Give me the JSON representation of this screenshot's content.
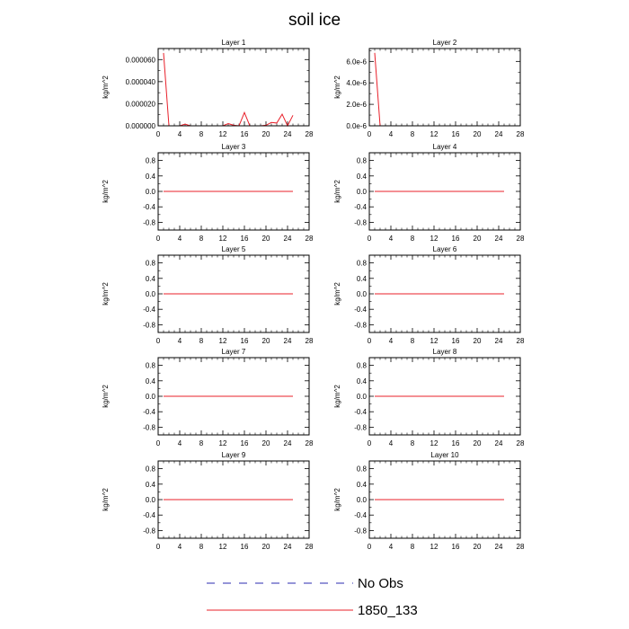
{
  "title": "soil ice",
  "legend": {
    "placement": "bottom",
    "entries": [
      {
        "label": "No Obs",
        "color": "#2b2bb0",
        "style": "dashed"
      },
      {
        "label": "1850_133",
        "color": "#e8202a",
        "style": "solid"
      }
    ]
  },
  "chart_data": [
    {
      "type": "line",
      "title": "Layer 1",
      "ylabel": "kg/m^2",
      "xlim": [
        0,
        28
      ],
      "ylim": [
        0,
        7e-05
      ],
      "xticks": [
        0,
        4,
        8,
        12,
        16,
        20,
        24,
        28
      ],
      "yticks": [
        0,
        2e-05,
        4e-05,
        6e-05
      ],
      "ytick_labels": [
        "0.000000",
        "0.000020",
        "0.000040",
        "0.000060"
      ],
      "series": [
        {
          "name": "1850_133",
          "color": "#e8202a",
          "x": [
            1,
            2,
            3,
            4,
            5,
            6,
            7,
            8,
            9,
            10,
            11,
            12,
            13,
            14,
            15,
            16,
            17,
            18,
            19,
            20,
            21,
            22,
            23,
            24,
            25
          ],
          "values": [
            6.6e-05,
            0,
            0,
            0,
            1.5e-06,
            0,
            0,
            0,
            0,
            0,
            0,
            0,
            2e-06,
            5e-07,
            0,
            1.2e-05,
            0,
            0,
            0,
            5e-07,
            3e-06,
            2.5e-06,
            1.05e-05,
            0,
            9.5e-06
          ]
        }
      ]
    },
    {
      "type": "line",
      "title": "Layer 2",
      "ylabel": "kg/m^2",
      "xlim": [
        0,
        28
      ],
      "ylim": [
        0,
        7.2e-06
      ],
      "xticks": [
        0,
        4,
        8,
        12,
        16,
        20,
        24,
        28
      ],
      "yticks": [
        0,
        2e-06,
        4e-06,
        6e-06
      ],
      "ytick_labels": [
        "0.0e-6",
        "2.0e-6",
        "4.0e-6",
        "6.0e-6"
      ],
      "series": [
        {
          "name": "1850_133",
          "color": "#e8202a",
          "x": [
            1,
            2,
            3,
            4,
            5,
            6,
            7,
            8,
            9,
            10,
            11,
            12,
            13,
            14,
            15,
            16,
            17,
            18,
            19,
            20,
            21,
            22,
            23,
            24,
            25
          ],
          "values": [
            6.8e-06,
            0,
            0,
            0,
            0,
            0,
            0,
            0,
            0,
            0,
            0,
            0,
            0,
            0,
            0,
            0,
            0,
            0,
            0,
            0,
            0,
            0,
            0,
            0,
            0
          ]
        }
      ]
    },
    {
      "type": "line",
      "title": "Layer 3",
      "ylabel": "kg/m^2",
      "xlim": [
        0,
        28
      ],
      "ylim": [
        -1,
        1
      ],
      "xticks": [
        0,
        4,
        8,
        12,
        16,
        20,
        24,
        28
      ],
      "yticks": [
        -0.8,
        -0.4,
        0,
        0.4,
        0.8
      ],
      "ytick_labels": [
        "-0.8",
        "-0.4",
        "0.0",
        "0.4",
        "0.8"
      ],
      "series": [
        {
          "name": "1850_133",
          "color": "#e8202a",
          "x": [
            1,
            25
          ],
          "values": [
            0,
            0
          ]
        }
      ]
    },
    {
      "type": "line",
      "title": "Layer 4",
      "ylabel": "kg/m^2",
      "xlim": [
        0,
        28
      ],
      "ylim": [
        -1,
        1
      ],
      "xticks": [
        0,
        4,
        8,
        12,
        16,
        20,
        24,
        28
      ],
      "yticks": [
        -0.8,
        -0.4,
        0,
        0.4,
        0.8
      ],
      "ytick_labels": [
        "-0.8",
        "-0.4",
        "0.0",
        "0.4",
        "0.8"
      ],
      "series": [
        {
          "name": "1850_133",
          "color": "#e8202a",
          "x": [
            1,
            25
          ],
          "values": [
            0,
            0
          ]
        }
      ]
    },
    {
      "type": "line",
      "title": "Layer 5",
      "ylabel": "kg/m^2",
      "xlim": [
        0,
        28
      ],
      "ylim": [
        -1,
        1
      ],
      "xticks": [
        0,
        4,
        8,
        12,
        16,
        20,
        24,
        28
      ],
      "yticks": [
        -0.8,
        -0.4,
        0,
        0.4,
        0.8
      ],
      "ytick_labels": [
        "-0.8",
        "-0.4",
        "0.0",
        "0.4",
        "0.8"
      ],
      "series": [
        {
          "name": "1850_133",
          "color": "#e8202a",
          "x": [
            1,
            25
          ],
          "values": [
            0,
            0
          ]
        }
      ]
    },
    {
      "type": "line",
      "title": "Layer 6",
      "ylabel": "kg/m^2",
      "xlim": [
        0,
        28
      ],
      "ylim": [
        -1,
        1
      ],
      "xticks": [
        0,
        4,
        8,
        12,
        16,
        20,
        24,
        28
      ],
      "yticks": [
        -0.8,
        -0.4,
        0,
        0.4,
        0.8
      ],
      "ytick_labels": [
        "-0.8",
        "-0.4",
        "0.0",
        "0.4",
        "0.8"
      ],
      "series": [
        {
          "name": "1850_133",
          "color": "#e8202a",
          "x": [
            1,
            25
          ],
          "values": [
            0,
            0
          ]
        }
      ]
    },
    {
      "type": "line",
      "title": "Layer 7",
      "ylabel": "kg/m^2",
      "xlim": [
        0,
        28
      ],
      "ylim": [
        -1,
        1
      ],
      "xticks": [
        0,
        4,
        8,
        12,
        16,
        20,
        24,
        28
      ],
      "yticks": [
        -0.8,
        -0.4,
        0,
        0.4,
        0.8
      ],
      "ytick_labels": [
        "-0.8",
        "-0.4",
        "0.0",
        "0.4",
        "0.8"
      ],
      "series": [
        {
          "name": "1850_133",
          "color": "#e8202a",
          "x": [
            1,
            25
          ],
          "values": [
            0,
            0
          ]
        }
      ]
    },
    {
      "type": "line",
      "title": "Layer 8",
      "ylabel": "kg/m^2",
      "xlim": [
        0,
        28
      ],
      "ylim": [
        -1,
        1
      ],
      "xticks": [
        0,
        4,
        8,
        12,
        16,
        20,
        24,
        28
      ],
      "yticks": [
        -0.8,
        -0.4,
        0,
        0.4,
        0.8
      ],
      "ytick_labels": [
        "-0.8",
        "-0.4",
        "0.0",
        "0.4",
        "0.8"
      ],
      "series": [
        {
          "name": "1850_133",
          "color": "#e8202a",
          "x": [
            1,
            25
          ],
          "values": [
            0,
            0
          ]
        }
      ]
    },
    {
      "type": "line",
      "title": "Layer 9",
      "ylabel": "kg/m^2",
      "xlim": [
        0,
        28
      ],
      "ylim": [
        -1,
        1
      ],
      "xticks": [
        0,
        4,
        8,
        12,
        16,
        20,
        24,
        28
      ],
      "yticks": [
        -0.8,
        -0.4,
        0,
        0.4,
        0.8
      ],
      "ytick_labels": [
        "-0.8",
        "-0.4",
        "0.0",
        "0.4",
        "0.8"
      ],
      "series": [
        {
          "name": "1850_133",
          "color": "#e8202a",
          "x": [
            1,
            25
          ],
          "values": [
            0,
            0
          ]
        }
      ]
    },
    {
      "type": "line",
      "title": "Layer 10",
      "ylabel": "kg/m^2",
      "xlim": [
        0,
        28
      ],
      "ylim": [
        -1,
        1
      ],
      "xticks": [
        0,
        4,
        8,
        12,
        16,
        20,
        24,
        28
      ],
      "yticks": [
        -0.8,
        -0.4,
        0,
        0.4,
        0.8
      ],
      "ytick_labels": [
        "-0.8",
        "-0.4",
        "0.0",
        "0.4",
        "0.8"
      ],
      "series": [
        {
          "name": "1850_133",
          "color": "#e8202a",
          "x": [
            1,
            25
          ],
          "values": [
            0,
            0
          ]
        }
      ]
    }
  ]
}
